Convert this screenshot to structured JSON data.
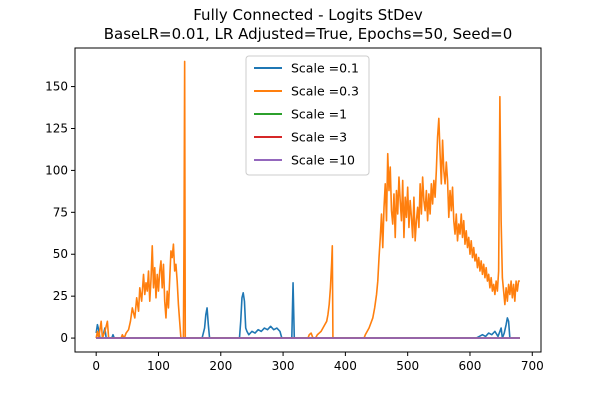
{
  "chart_data": {
    "type": "line",
    "title_line1": "Fully Connected - Logits StDev",
    "title_line2": "BaseLR=0.01, LR Adjusted=True, Epochs=50, Seed=0",
    "xlabel": "",
    "ylabel": "",
    "xlim": [
      -34,
      714
    ],
    "ylim": [
      -8.3,
      173
    ],
    "x_ticks": [
      0,
      100,
      200,
      300,
      400,
      500,
      600,
      700
    ],
    "y_ticks": [
      0,
      25,
      50,
      75,
      100,
      125,
      150
    ],
    "grid": false,
    "legend_position": "upper-center",
    "series": [
      {
        "name": "Scale =0.1",
        "color": "#1f77b4",
        "points": [
          [
            0,
            3
          ],
          [
            2,
            8
          ],
          [
            4,
            5
          ],
          [
            6,
            0
          ],
          [
            10,
            0
          ],
          [
            12,
            3
          ],
          [
            14,
            6
          ],
          [
            16,
            0
          ],
          [
            25,
            0
          ],
          [
            27,
            2
          ],
          [
            29,
            0
          ],
          [
            170,
            0
          ],
          [
            172,
            3
          ],
          [
            174,
            6
          ],
          [
            176,
            14
          ],
          [
            178,
            18
          ],
          [
            180,
            8
          ],
          [
            182,
            0
          ],
          [
            230,
            0
          ],
          [
            232,
            10
          ],
          [
            234,
            24
          ],
          [
            236,
            27
          ],
          [
            238,
            22
          ],
          [
            240,
            6
          ],
          [
            242,
            4
          ],
          [
            245,
            2
          ],
          [
            250,
            4
          ],
          [
            255,
            3
          ],
          [
            260,
            5
          ],
          [
            265,
            4
          ],
          [
            270,
            6
          ],
          [
            275,
            5
          ],
          [
            280,
            7
          ],
          [
            285,
            5
          ],
          [
            290,
            6
          ],
          [
            295,
            4
          ],
          [
            298,
            0
          ],
          [
            314,
            0
          ],
          [
            316,
            33
          ],
          [
            318,
            0
          ],
          [
            610,
            0
          ],
          [
            615,
            1
          ],
          [
            620,
            2
          ],
          [
            625,
            1
          ],
          [
            630,
            3
          ],
          [
            635,
            2
          ],
          [
            640,
            4
          ],
          [
            645,
            1
          ],
          [
            650,
            6
          ],
          [
            652,
            0
          ],
          [
            655,
            3
          ],
          [
            658,
            8
          ],
          [
            660,
            12
          ],
          [
            662,
            10
          ],
          [
            664,
            0
          ],
          [
            680,
            0
          ]
        ]
      },
      {
        "name": "Scale =0.3",
        "color": "#ff7f0e",
        "points": [
          [
            0,
            0
          ],
          [
            2,
            4
          ],
          [
            4,
            0
          ],
          [
            8,
            10
          ],
          [
            10,
            0
          ],
          [
            14,
            4
          ],
          [
            16,
            7
          ],
          [
            18,
            10
          ],
          [
            20,
            0
          ],
          [
            40,
            0
          ],
          [
            42,
            2
          ],
          [
            45,
            0
          ],
          [
            48,
            3
          ],
          [
            52,
            5
          ],
          [
            55,
            10
          ],
          [
            58,
            18
          ],
          [
            62,
            12
          ],
          [
            65,
            24
          ],
          [
            68,
            16
          ],
          [
            70,
            30
          ],
          [
            73,
            22
          ],
          [
            76,
            38
          ],
          [
            78,
            26
          ],
          [
            80,
            33
          ],
          [
            82,
            28
          ],
          [
            84,
            40
          ],
          [
            86,
            22
          ],
          [
            88,
            35
          ],
          [
            90,
            55
          ],
          [
            92,
            30
          ],
          [
            94,
            42
          ],
          [
            96,
            24
          ],
          [
            98,
            38
          ],
          [
            100,
            28
          ],
          [
            102,
            40
          ],
          [
            104,
            46
          ],
          [
            106,
            30
          ],
          [
            108,
            44
          ],
          [
            110,
            22
          ],
          [
            112,
            12
          ],
          [
            114,
            28
          ],
          [
            116,
            18
          ],
          [
            118,
            35
          ],
          [
            120,
            52
          ],
          [
            122,
            48
          ],
          [
            124,
            56
          ],
          [
            126,
            40
          ],
          [
            128,
            44
          ],
          [
            130,
            34
          ],
          [
            132,
            20
          ],
          [
            134,
            10
          ],
          [
            136,
            0
          ],
          [
            140,
            0
          ],
          [
            141,
            60
          ],
          [
            142,
            165
          ],
          [
            143,
            0
          ],
          [
            144,
            0
          ],
          [
            340,
            0
          ],
          [
            342,
            2
          ],
          [
            345,
            3
          ],
          [
            348,
            0
          ],
          [
            352,
            0
          ],
          [
            355,
            2
          ],
          [
            358,
            3
          ],
          [
            361,
            4
          ],
          [
            364,
            6
          ],
          [
            367,
            8
          ],
          [
            370,
            10
          ],
          [
            372,
            14
          ],
          [
            374,
            20
          ],
          [
            376,
            30
          ],
          [
            378,
            45
          ],
          [
            379,
            55
          ],
          [
            380,
            0
          ],
          [
            430,
            0
          ],
          [
            432,
            2
          ],
          [
            435,
            4
          ],
          [
            438,
            6
          ],
          [
            441,
            9
          ],
          [
            444,
            12
          ],
          [
            447,
            18
          ],
          [
            450,
            26
          ],
          [
            452,
            34
          ],
          [
            454,
            48
          ],
          [
            456,
            60
          ],
          [
            458,
            74
          ],
          [
            460,
            54
          ],
          [
            462,
            78
          ],
          [
            464,
            92
          ],
          [
            466,
            70
          ],
          [
            468,
            110
          ],
          [
            470,
            88
          ],
          [
            472,
            102
          ],
          [
            474,
            76
          ],
          [
            476,
            68
          ],
          [
            478,
            86
          ],
          [
            480,
            60
          ],
          [
            482,
            88
          ],
          [
            484,
            74
          ],
          [
            486,
            96
          ],
          [
            488,
            82
          ],
          [
            490,
            70
          ],
          [
            492,
            94
          ],
          [
            494,
            60
          ],
          [
            496,
            84
          ],
          [
            498,
            72
          ],
          [
            500,
            90
          ],
          [
            502,
            66
          ],
          [
            504,
            82
          ],
          [
            506,
            72
          ],
          [
            508,
            60
          ],
          [
            510,
            84
          ],
          [
            512,
            58
          ],
          [
            514,
            70
          ],
          [
            516,
            78
          ],
          [
            518,
            66
          ],
          [
            520,
            92
          ],
          [
            522,
            74
          ],
          [
            524,
            96
          ],
          [
            526,
            82
          ],
          [
            528,
            76
          ],
          [
            530,
            88
          ],
          [
            532,
            70
          ],
          [
            534,
            86
          ],
          [
            536,
            74
          ],
          [
            538,
            92
          ],
          [
            540,
            80
          ],
          [
            542,
            94
          ],
          [
            544,
            84
          ],
          [
            546,
            100
          ],
          [
            548,
            120
          ],
          [
            550,
            131
          ],
          [
            552,
            110
          ],
          [
            554,
            92
          ],
          [
            556,
            118
          ],
          [
            558,
            100
          ],
          [
            560,
            92
          ],
          [
            562,
            105
          ],
          [
            564,
            94
          ],
          [
            566,
            72
          ],
          [
            568,
            88
          ],
          [
            570,
            76
          ],
          [
            572,
            90
          ],
          [
            574,
            70
          ],
          [
            576,
            62
          ],
          [
            578,
            74
          ],
          [
            580,
            58
          ],
          [
            582,
            68
          ],
          [
            584,
            62
          ],
          [
            586,
            74
          ],
          [
            588,
            60
          ],
          [
            590,
            70
          ],
          [
            592,
            56
          ],
          [
            594,
            64
          ],
          [
            596,
            54
          ],
          [
            598,
            60
          ],
          [
            600,
            50
          ],
          [
            602,
            58
          ],
          [
            604,
            48
          ],
          [
            606,
            54
          ],
          [
            608,
            46
          ],
          [
            610,
            50
          ],
          [
            612,
            42
          ],
          [
            614,
            48
          ],
          [
            616,
            40
          ],
          [
            618,
            46
          ],
          [
            620,
            38
          ],
          [
            622,
            44
          ],
          [
            624,
            36
          ],
          [
            626,
            42
          ],
          [
            628,
            34
          ],
          [
            630,
            38
          ],
          [
            632,
            30
          ],
          [
            634,
            36
          ],
          [
            636,
            28
          ],
          [
            638,
            32
          ],
          [
            640,
            26
          ],
          [
            642,
            34
          ],
          [
            644,
            28
          ],
          [
            646,
            40
          ],
          [
            648,
            144
          ],
          [
            650,
            70
          ],
          [
            652,
            36
          ],
          [
            654,
            28
          ],
          [
            656,
            20
          ],
          [
            658,
            30
          ],
          [
            660,
            22
          ],
          [
            662,
            32
          ],
          [
            664,
            26
          ],
          [
            666,
            34
          ],
          [
            668,
            24
          ],
          [
            670,
            32
          ],
          [
            672,
            22
          ],
          [
            674,
            34
          ],
          [
            676,
            28
          ],
          [
            678,
            34
          ],
          [
            680,
            34
          ]
        ]
      },
      {
        "name": "Scale =1",
        "color": "#2ca02c",
        "points": [
          [
            0,
            0
          ],
          [
            680,
            0
          ]
        ]
      },
      {
        "name": "Scale =3",
        "color": "#d62728",
        "points": [
          [
            0,
            0
          ],
          [
            680,
            0
          ]
        ]
      },
      {
        "name": "Scale =10",
        "color": "#9467bd",
        "points": [
          [
            0,
            0
          ],
          [
            680,
            0
          ]
        ]
      }
    ]
  }
}
